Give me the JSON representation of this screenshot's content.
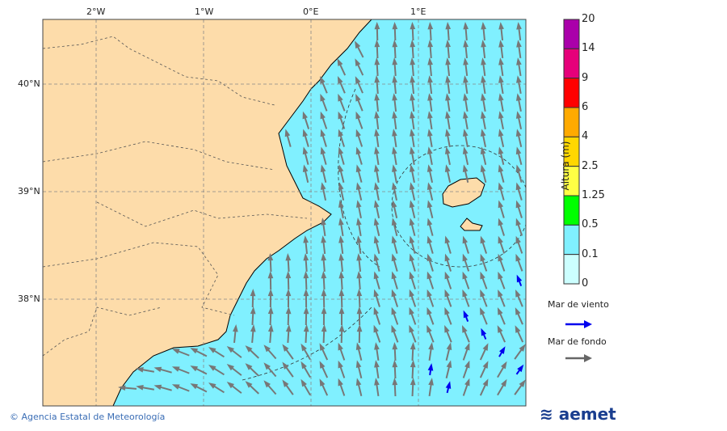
{
  "map": {
    "lon_labels": [
      "2°W",
      "1°W",
      "0°E",
      "1°E"
    ],
    "lat_labels": [
      "40°N",
      "39°N",
      "38°N"
    ],
    "colors": {
      "land": "#fddcaa",
      "sea": "#80f0ff",
      "swell_arrow": "#777777",
      "wind_arrow": "#0000ee"
    }
  },
  "colorbar": {
    "title": "Altura (m)",
    "ticks": [
      "20",
      "14",
      "9",
      "6",
      "4",
      "2.5",
      "1.25",
      "0.5",
      "0.1",
      "0"
    ],
    "colors": [
      "#aa00aa",
      "#e6007a",
      "#ff0000",
      "#ffaa00",
      "#ffd700",
      "#ffff44",
      "#00ff00",
      "#80f0ff",
      "#ccffff"
    ]
  },
  "legend": {
    "wind_sea": "Mar de viento",
    "swell": "Mar de fondo"
  },
  "footer": {
    "copyright": "© Agencia Estatal de Meteorología",
    "logo": "aemet"
  }
}
